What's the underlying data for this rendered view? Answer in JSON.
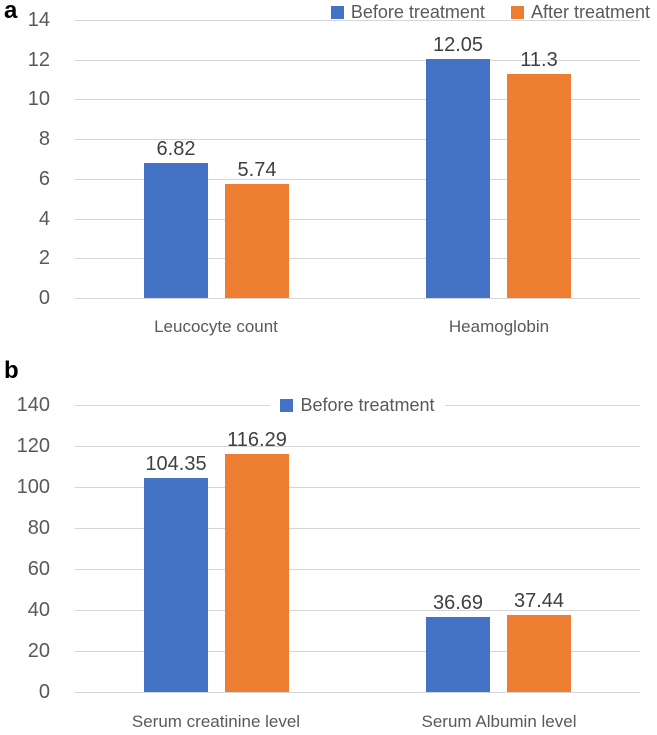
{
  "figure": {
    "background": "#ffffff"
  },
  "panels": [
    {
      "letter": "a"
    },
    {
      "letter": "b"
    }
  ],
  "colors": {
    "series_before": "#4472C4",
    "series_after": "#ED7D31",
    "gridline": "#d6d6d6",
    "tick_text": "#595959",
    "category_text": "#595959",
    "value_text": "#404040",
    "legend_text": "#595959"
  },
  "chart_data": [
    {
      "type": "bar",
      "panel": "a",
      "title": "",
      "xlabel": "",
      "ylabel": "",
      "grid": true,
      "ylim": [
        0,
        14
      ],
      "ytick_step": 2,
      "categories": [
        "Leucocyte count",
        "Heamoglobin"
      ],
      "series": [
        {
          "name": "Before treatment",
          "color": "#4472C4",
          "values": [
            6.82,
            12.05
          ]
        },
        {
          "name": "After treatment",
          "color": "#ED7D31",
          "values": [
            5.74,
            11.3
          ]
        }
      ],
      "value_labels": [
        [
          "6.82",
          "12.05"
        ],
        [
          "5.74",
          "11.3"
        ]
      ],
      "legend_position": "top-right",
      "legend_entries": [
        {
          "label": "Before treatment",
          "color": "#4472C4"
        },
        {
          "label": "After treatment",
          "color": "#ED7D31"
        }
      ]
    },
    {
      "type": "bar",
      "panel": "b",
      "title": "",
      "xlabel": "",
      "ylabel": "",
      "grid": true,
      "ylim": [
        0,
        140
      ],
      "ytick_step": 20,
      "categories": [
        "Serum creatinine level",
        "Serum Albumin level"
      ],
      "series": [
        {
          "name": "Before treatment",
          "color": "#4472C4",
          "values": [
            104.35,
            36.69
          ]
        },
        {
          "name": "After treatment",
          "color": "#ED7D31",
          "values": [
            116.29,
            37.44
          ]
        }
      ],
      "value_labels": [
        [
          "104.35",
          "36.69"
        ],
        [
          "116.29",
          "37.44"
        ]
      ],
      "legend_position": "top-center",
      "legend_entries": [
        {
          "label": "Before treatment",
          "color": "#4472C4"
        }
      ]
    }
  ]
}
